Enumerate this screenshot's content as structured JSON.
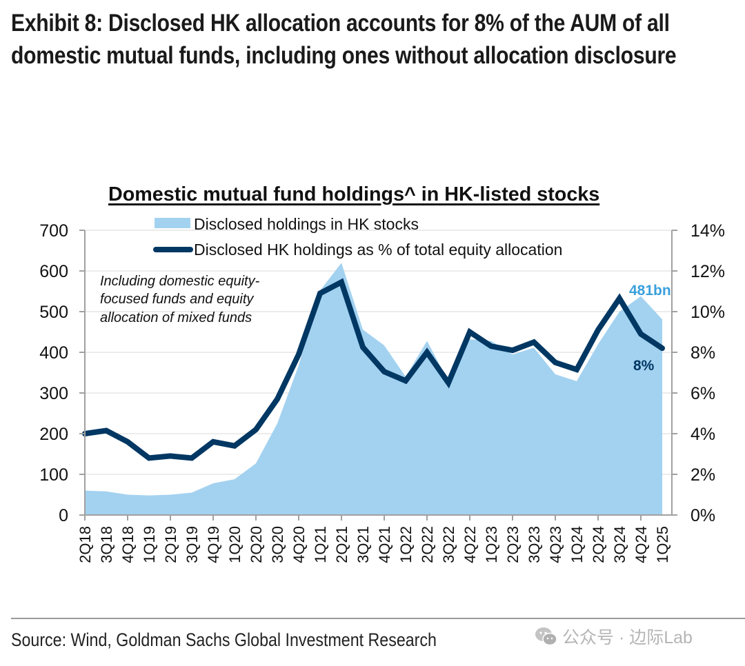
{
  "exhibit": {
    "title": "Exhibit 8: Disclosed HK allocation accounts for 8% of the AUM of all domestic mutual funds, including ones without allocation disclosure"
  },
  "chart_data": {
    "type": "area+line",
    "title": "Domestic mutual fund holdings^ in HK-listed stocks",
    "categories": [
      "2Q18",
      "3Q18",
      "4Q18",
      "1Q19",
      "2Q19",
      "3Q19",
      "4Q19",
      "1Q20",
      "2Q20",
      "3Q20",
      "4Q20",
      "1Q21",
      "2Q21",
      "3Q21",
      "4Q21",
      "1Q22",
      "2Q22",
      "3Q22",
      "4Q22",
      "1Q23",
      "2Q23",
      "3Q23",
      "4Q23",
      "1Q24",
      "2Q24",
      "3Q24",
      "4Q24",
      "1Q25"
    ],
    "series": [
      {
        "name": "Disclosed holdings in HK stocks",
        "type": "area",
        "axis": "left",
        "color": "#a3d2f0",
        "values": [
          60,
          58,
          50,
          48,
          50,
          55,
          78,
          88,
          127,
          225,
          368,
          552,
          620,
          456,
          417,
          340,
          428,
          329,
          432,
          428,
          395,
          411,
          346,
          329,
          420,
          500,
          538,
          481
        ]
      },
      {
        "name": "Disclosed HK holdings as % of total equity allocation",
        "type": "line",
        "axis": "right",
        "color": "#003763",
        "values": [
          4.0,
          4.15,
          3.6,
          2.8,
          2.9,
          2.8,
          3.6,
          3.4,
          4.2,
          5.7,
          7.9,
          10.9,
          11.45,
          8.25,
          7.05,
          6.6,
          8.0,
          6.5,
          9.0,
          8.3,
          8.1,
          8.5,
          7.5,
          7.15,
          9.1,
          10.65,
          8.9,
          8.2
        ]
      }
    ],
    "y_left": {
      "ylim": [
        0,
        700
      ],
      "ticks": [
        0,
        100,
        200,
        300,
        400,
        500,
        600,
        700
      ],
      "tick_labels": [
        "0",
        "100",
        "200",
        "300",
        "400",
        "500",
        "600",
        "700"
      ]
    },
    "y_right": {
      "ylim": [
        0,
        14
      ],
      "ticks": [
        0,
        2,
        4,
        6,
        8,
        10,
        12,
        14
      ],
      "tick_labels": [
        "0%",
        "2%",
        "4%",
        "6%",
        "8%",
        "10%",
        "12%",
        "14%"
      ]
    },
    "xlabel": "",
    "grid": true,
    "legend_position": "top",
    "annotations": [
      {
        "text": "Including domestic equity-focused funds and equity allocation of mixed funds",
        "lines": [
          "Including domestic equity-",
          "focused funds and equity",
          "allocation of mixed funds"
        ],
        "style": "italic"
      },
      {
        "text": "481bn",
        "category": "1Q25",
        "series": "Disclosed holdings in HK stocks",
        "color": "#3aa0dc"
      },
      {
        "text": "8%",
        "category": "1Q25",
        "series": "Disclosed HK holdings as % of total equity allocation",
        "color": "#003763"
      }
    ]
  },
  "footer": {
    "source": "Source: Wind, Goldman Sachs Global Investment Research",
    "watermark": "公众号 · 边际Lab"
  }
}
